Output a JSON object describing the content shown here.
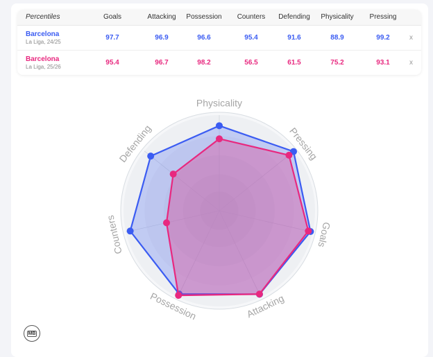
{
  "table": {
    "header_label": "Percentiles",
    "close_label": "x",
    "rows": [
      {
        "name": "Barcelona",
        "sub": "La Liga, 24/25",
        "color": "#3b5cf2"
      },
      {
        "name": "Barcelona",
        "sub": "La Liga, 25/26",
        "color": "#e8287f"
      }
    ]
  },
  "chart_data": {
    "type": "radar",
    "categories": [
      "Goals",
      "Attacking",
      "Possession",
      "Counters",
      "Defending",
      "Physicality",
      "Pressing"
    ],
    "range": [
      0,
      100
    ],
    "series": [
      {
        "name": "Barcelona",
        "label": "La Liga, 24/25",
        "color": "#3b5cf2",
        "values": [
          97.7,
          96.9,
          96.6,
          95.4,
          91.6,
          88.9,
          99.2
        ]
      },
      {
        "name": "Barcelona",
        "label": "La Liga, 25/26",
        "color": "#e8287f",
        "values": [
          95.4,
          96.7,
          98.2,
          56.5,
          61.5,
          75.2,
          93.1
        ]
      }
    ]
  },
  "logo": {
    "text": "MB"
  }
}
